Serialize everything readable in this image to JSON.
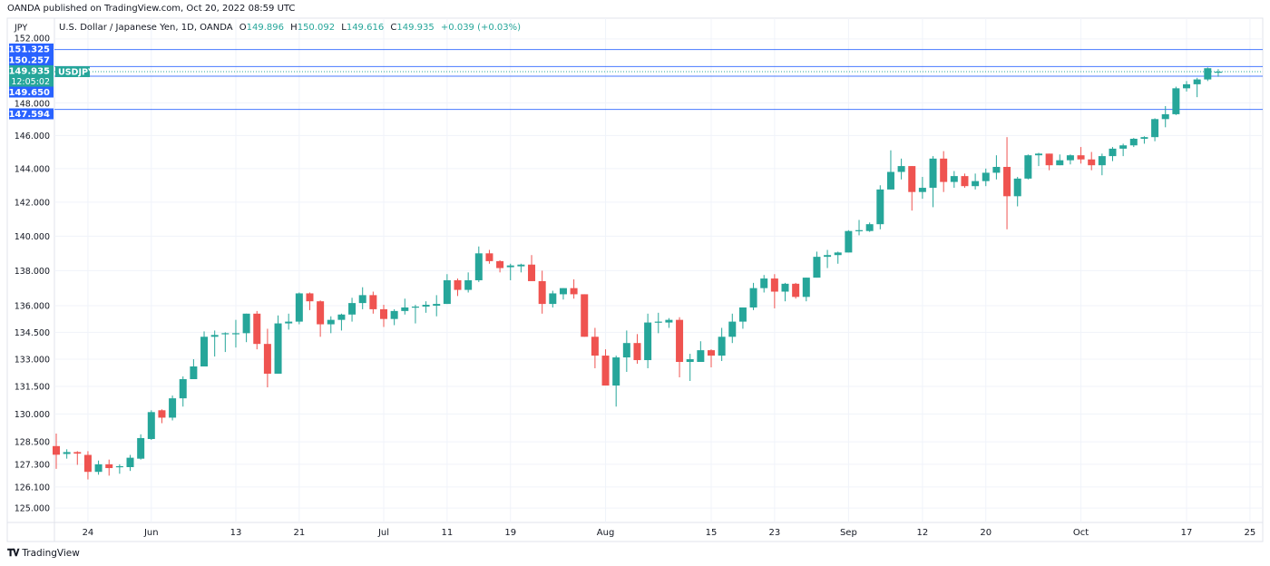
{
  "header": {
    "published": "OANDA published on TradingView.com, Oct 20, 2022 08:59 UTC"
  },
  "legend": {
    "title": "U.S. Dollar / Japanese Yen, 1D, OANDA",
    "o_label": "O",
    "o": "149.896",
    "h_label": "H",
    "h": "150.092",
    "l_label": "L",
    "l": "149.616",
    "c_label": "C",
    "c": "149.935",
    "change": "+0.039 (+0.03%)"
  },
  "footer": {
    "brand": "TradingView",
    "brand_mark": "17"
  },
  "colors": {
    "up": "#26a69a",
    "down": "#ef5350",
    "line": "#2962ff",
    "grid": "#f0f3fa"
  },
  "chart_data": {
    "type": "candlestick",
    "symbol": "USDJPY",
    "currency_label": "JPY",
    "y_scale": "log",
    "ylim": [
      124.5,
      152.5
    ],
    "y_ticks": [
      {
        "value": 152,
        "label": "152.000"
      },
      {
        "value": 148,
        "label": "148.000"
      },
      {
        "value": 146,
        "label": "146.000"
      },
      {
        "value": 144,
        "label": "144.000"
      },
      {
        "value": 142,
        "label": "142.000"
      },
      {
        "value": 140,
        "label": "140.000"
      },
      {
        "value": 138,
        "label": "138.000"
      },
      {
        "value": 136,
        "label": "136.000"
      },
      {
        "value": 134.5,
        "label": "134.500"
      },
      {
        "value": 133,
        "label": "133.000"
      },
      {
        "value": 131.5,
        "label": "131.500"
      },
      {
        "value": 130,
        "label": "130.000"
      },
      {
        "value": 128.5,
        "label": "128.500"
      },
      {
        "value": 127.3,
        "label": "127.300"
      },
      {
        "value": 126.1,
        "label": "126.100"
      },
      {
        "value": 125,
        "label": "125.000"
      }
    ],
    "x_ticks": [
      {
        "index": 3,
        "label": "24"
      },
      {
        "index": 9,
        "label": "Jun"
      },
      {
        "index": 17,
        "label": "13"
      },
      {
        "index": 23,
        "label": "21"
      },
      {
        "index": 31,
        "label": "Jul"
      },
      {
        "index": 37,
        "label": "11"
      },
      {
        "index": 43,
        "label": "19"
      },
      {
        "index": 52,
        "label": "Aug"
      },
      {
        "index": 62,
        "label": "15"
      },
      {
        "index": 68,
        "label": "23"
      },
      {
        "index": 75,
        "label": "Sep"
      },
      {
        "index": 82,
        "label": "12"
      },
      {
        "index": 88,
        "label": "20"
      },
      {
        "index": 97,
        "label": "Oct"
      },
      {
        "index": 107,
        "label": "17"
      },
      {
        "index": 113,
        "label": "25"
      }
    ],
    "horizontal_lines": [
      {
        "value": 151.325,
        "label": "151.325"
      },
      {
        "value": 150.257,
        "label": "150.257"
      },
      {
        "value": 149.65,
        "label": "149.650"
      },
      {
        "value": 147.594,
        "label": "147.594"
      }
    ],
    "last_price": {
      "value": 149.935,
      "label": "149.935",
      "countdown": "12:05:02"
    },
    "ohlc": [
      [
        128.27,
        128.94,
        127.06,
        127.81
      ],
      [
        127.85,
        128.1,
        127.6,
        127.95
      ],
      [
        127.95,
        128.0,
        127.27,
        127.87
      ],
      [
        127.8,
        128.0,
        126.5,
        126.9
      ],
      [
        126.9,
        127.5,
        126.75,
        127.3
      ],
      [
        127.3,
        127.55,
        126.7,
        127.1
      ],
      [
        127.15,
        127.3,
        126.8,
        127.2
      ],
      [
        127.15,
        127.8,
        126.95,
        127.65
      ],
      [
        127.6,
        128.9,
        127.55,
        128.7
      ],
      [
        128.65,
        130.2,
        128.6,
        130.1
      ],
      [
        130.2,
        130.25,
        129.5,
        129.8
      ],
      [
        129.8,
        131.0,
        129.65,
        130.85
      ],
      [
        130.85,
        132.05,
        130.4,
        131.9
      ],
      [
        131.9,
        133.0,
        131.9,
        132.6
      ],
      [
        132.6,
        134.55,
        132.6,
        134.25
      ],
      [
        134.25,
        134.6,
        133.15,
        134.35
      ],
      [
        134.4,
        134.5,
        133.4,
        134.45
      ],
      [
        134.45,
        135.2,
        133.65,
        134.45
      ],
      [
        134.45,
        135.55,
        133.95,
        135.55
      ],
      [
        135.55,
        135.7,
        133.55,
        133.85
      ],
      [
        133.85,
        134.7,
        131.45,
        132.2
      ],
      [
        132.2,
        135.45,
        132.2,
        135.0
      ],
      [
        135.0,
        135.55,
        134.65,
        135.1
      ],
      [
        135.1,
        136.75,
        134.95,
        136.7
      ],
      [
        136.7,
        136.75,
        135.75,
        136.25
      ],
      [
        136.25,
        136.3,
        134.25,
        134.95
      ],
      [
        134.95,
        135.4,
        134.45,
        135.2
      ],
      [
        135.2,
        135.55,
        134.6,
        135.5
      ],
      [
        135.5,
        136.45,
        135.1,
        136.15
      ],
      [
        136.15,
        137.05,
        135.8,
        136.6
      ],
      [
        136.6,
        136.8,
        135.55,
        135.8
      ],
      [
        135.8,
        136.05,
        134.8,
        135.25
      ],
      [
        135.25,
        135.8,
        134.9,
        135.7
      ],
      [
        135.7,
        136.4,
        135.5,
        135.9
      ],
      [
        135.9,
        136.05,
        135.0,
        135.95
      ],
      [
        135.95,
        136.25,
        135.6,
        136.05
      ],
      [
        136.0,
        136.6,
        135.4,
        136.1
      ],
      [
        136.1,
        137.8,
        136.1,
        137.45
      ],
      [
        137.45,
        137.55,
        136.55,
        136.9
      ],
      [
        136.9,
        137.9,
        136.75,
        137.45
      ],
      [
        137.45,
        139.4,
        137.35,
        139.0
      ],
      [
        139.0,
        139.2,
        138.4,
        138.55
      ],
      [
        138.55,
        138.6,
        137.9,
        138.15
      ],
      [
        138.2,
        138.4,
        137.45,
        138.3
      ],
      [
        138.25,
        138.4,
        137.9,
        138.35
      ],
      [
        138.35,
        138.9,
        137.4,
        137.4
      ],
      [
        137.4,
        138.0,
        135.55,
        136.1
      ],
      [
        136.1,
        136.85,
        135.9,
        136.7
      ],
      [
        136.65,
        137.0,
        136.35,
        137.0
      ],
      [
        137.0,
        137.5,
        136.4,
        136.65
      ],
      [
        136.65,
        136.65,
        134.25,
        134.25
      ],
      [
        134.25,
        134.75,
        132.5,
        133.2
      ],
      [
        133.2,
        133.55,
        131.55,
        131.55
      ],
      [
        131.55,
        133.2,
        130.4,
        133.1
      ],
      [
        133.1,
        134.6,
        132.3,
        133.9
      ],
      [
        133.9,
        134.4,
        132.75,
        132.95
      ],
      [
        132.95,
        135.55,
        132.5,
        135.05
      ],
      [
        135.05,
        135.6,
        134.45,
        135.1
      ],
      [
        135.05,
        135.3,
        134.75,
        135.2
      ],
      [
        135.2,
        135.35,
        132.0,
        132.85
      ],
      [
        132.85,
        133.3,
        131.8,
        133.0
      ],
      [
        132.85,
        134.0,
        132.85,
        133.5
      ],
      [
        133.5,
        133.55,
        132.55,
        133.2
      ],
      [
        133.2,
        134.75,
        132.9,
        134.25
      ],
      [
        134.25,
        135.55,
        133.9,
        135.1
      ],
      [
        135.1,
        135.9,
        134.7,
        135.9
      ],
      [
        135.9,
        137.3,
        135.75,
        137.0
      ],
      [
        137.0,
        137.75,
        136.75,
        137.55
      ],
      [
        137.55,
        137.8,
        135.85,
        136.8
      ],
      [
        136.8,
        137.3,
        136.25,
        137.25
      ],
      [
        137.25,
        137.3,
        136.4,
        136.5
      ],
      [
        136.5,
        137.6,
        136.25,
        137.6
      ],
      [
        137.6,
        139.1,
        137.6,
        138.8
      ],
      [
        138.8,
        139.2,
        138.15,
        138.9
      ],
      [
        138.9,
        139.1,
        138.4,
        139.05
      ],
      [
        139.05,
        140.35,
        139.05,
        140.3
      ],
      [
        140.3,
        140.95,
        140.05,
        140.35
      ],
      [
        140.3,
        140.8,
        140.25,
        140.7
      ],
      [
        140.7,
        143.0,
        140.4,
        142.75
      ],
      [
        142.75,
        145.1,
        142.75,
        143.8
      ],
      [
        143.8,
        144.6,
        143.35,
        144.15
      ],
      [
        144.15,
        144.15,
        141.5,
        142.6
      ],
      [
        142.6,
        143.5,
        142.2,
        142.85
      ],
      [
        142.85,
        144.75,
        141.7,
        144.6
      ],
      [
        144.6,
        145.05,
        142.6,
        143.2
      ],
      [
        143.2,
        143.85,
        142.85,
        143.55
      ],
      [
        143.55,
        143.7,
        142.85,
        142.95
      ],
      [
        142.95,
        143.7,
        142.75,
        143.25
      ],
      [
        143.25,
        144.0,
        142.95,
        143.75
      ],
      [
        143.75,
        144.8,
        143.35,
        144.1
      ],
      [
        144.1,
        145.9,
        140.4,
        142.35
      ],
      [
        142.35,
        143.5,
        141.75,
        143.4
      ],
      [
        143.4,
        144.85,
        143.35,
        144.8
      ],
      [
        144.8,
        144.95,
        144.15,
        144.9
      ],
      [
        144.9,
        144.9,
        143.9,
        144.2
      ],
      [
        144.2,
        144.85,
        144.2,
        144.5
      ],
      [
        144.5,
        144.85,
        144.25,
        144.8
      ],
      [
        144.8,
        145.3,
        144.3,
        144.55
      ],
      [
        144.55,
        145.0,
        143.9,
        144.2
      ],
      [
        144.2,
        144.9,
        143.6,
        144.75
      ],
      [
        144.75,
        145.3,
        144.45,
        145.2
      ],
      [
        145.2,
        145.5,
        144.75,
        145.4
      ],
      [
        145.4,
        145.85,
        145.3,
        145.8
      ],
      [
        145.8,
        145.95,
        145.5,
        145.9
      ],
      [
        145.9,
        147.05,
        145.65,
        147.0
      ],
      [
        147.0,
        147.8,
        146.5,
        147.3
      ],
      [
        147.3,
        149.0,
        147.25,
        148.9
      ],
      [
        148.9,
        149.35,
        148.7,
        149.15
      ],
      [
        149.15,
        149.55,
        148.35,
        149.45
      ],
      [
        149.45,
        150.2,
        149.35,
        150.15
      ],
      [
        149.896,
        150.092,
        149.616,
        149.935
      ]
    ]
  }
}
